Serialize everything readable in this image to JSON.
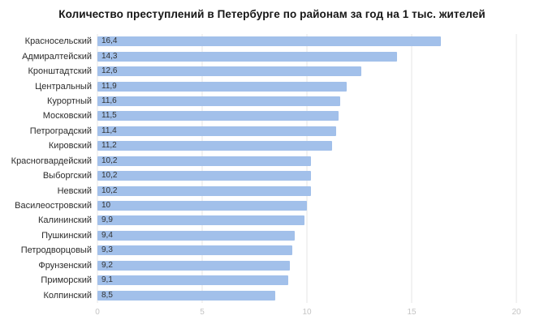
{
  "chart_data": {
    "type": "bar",
    "orientation": "horizontal",
    "title": "Количество преступлений в Петербурге по районам за год на 1 тыс. жителей",
    "categories": [
      "Красносельский",
      "Адмиралтейский",
      "Кронштадтский",
      "Центральный",
      "Курортный",
      "Московский",
      "Петроградский",
      "Кировский",
      "Красногвардейский",
      "Выборгский",
      "Невский",
      "Василеостровский",
      "Калининский",
      "Пушкинский",
      "Петродворцовый",
      "Фрунзенский",
      "Приморский",
      "Колпинский"
    ],
    "values": [
      16.4,
      14.3,
      12.6,
      11.9,
      11.6,
      11.5,
      11.4,
      11.2,
      10.2,
      10.2,
      10.2,
      10,
      9.9,
      9.4,
      9.3,
      9.2,
      9.1,
      8.5
    ],
    "value_labels": [
      "16,4",
      "14,3",
      "12,6",
      "11,9",
      "11,6",
      "11,5",
      "11,4",
      "11,2",
      "10,2",
      "10,2",
      "10,2",
      "10",
      "9,9",
      "9,4",
      "9,3",
      "9,2",
      "9,1",
      "8,5"
    ],
    "x_ticks": [
      0,
      5,
      10,
      15,
      20
    ],
    "xlim": [
      0,
      20
    ],
    "bar_color": "#a2c0ea",
    "grid": true,
    "legend_position": "none"
  }
}
